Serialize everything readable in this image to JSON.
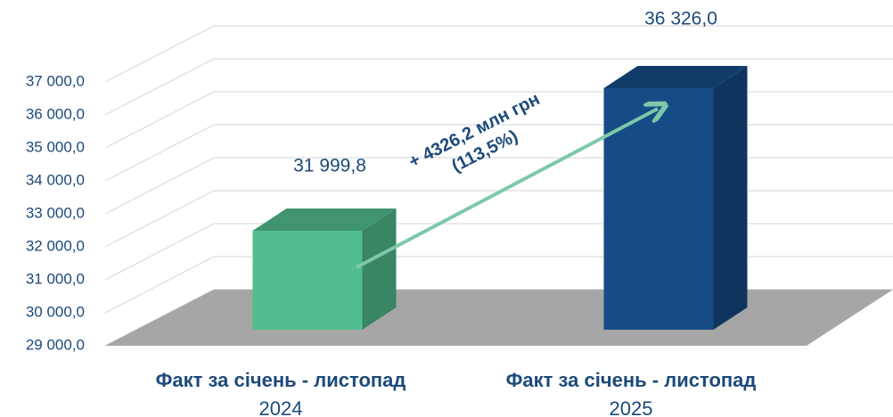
{
  "chart_data": {
    "type": "bar3d",
    "categories": [
      [
        "Факт за січень - листопад",
        "2024"
      ],
      [
        "Факт за січень - листопад",
        "2025"
      ]
    ],
    "values": [
      31999.8,
      36326.0
    ],
    "value_labels": [
      "31 999,8",
      "36 326,0"
    ],
    "colors": [
      "#52be8f",
      "#164c86"
    ],
    "ylim": [
      29000,
      37000
    ],
    "yticks": [
      {
        "value": 29000,
        "label": "29 000,0"
      },
      {
        "value": 30000,
        "label": "30 000,0"
      },
      {
        "value": 31000,
        "label": "31 000,0"
      },
      {
        "value": 32000,
        "label": "32 000,0"
      },
      {
        "value": 33000,
        "label": "33 000,0"
      },
      {
        "value": 34000,
        "label": "34 000,0"
      },
      {
        "value": 35000,
        "label": "35 000,0"
      },
      {
        "value": 36000,
        "label": "36 000,0"
      },
      {
        "value": 37000,
        "label": "37 000,0"
      }
    ],
    "grid": true,
    "annotation": [
      "+ 4326,2 млн грн",
      "(113,5%)"
    ]
  }
}
